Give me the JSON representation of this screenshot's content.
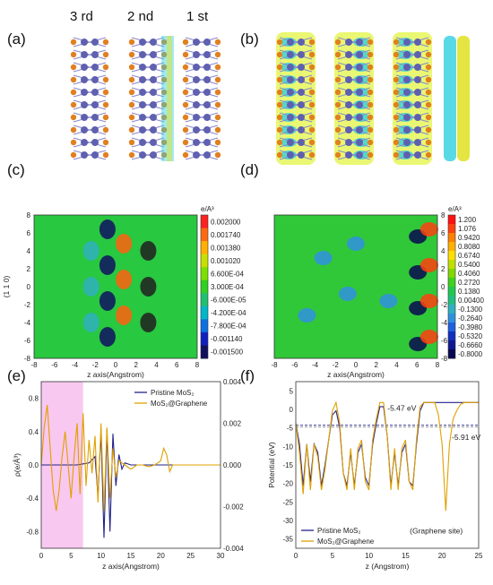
{
  "panels": {
    "a": "(a)",
    "b": "(b)",
    "c": "(c)",
    "d": "(d)",
    "e": "(e)",
    "f": "(f)"
  },
  "layer_labels": [
    "3 rd",
    "2 nd",
    "1 st"
  ],
  "colorbar_c": {
    "unit": "e/A³",
    "ticks": [
      "0.002000",
      "0.001740",
      "0.001380",
      "0.001020",
      "6.600E-04",
      "3.000E-04",
      "-6.000E-05",
      "-4.200E-04",
      "-7.800E-04",
      "-0.001140",
      "-0.001500"
    ],
    "colors": [
      "#ff2020",
      "#ff6a10",
      "#ffb000",
      "#c8e000",
      "#7ce000",
      "#30d020",
      "#20c070",
      "#00b8c8",
      "#1070e0",
      "#1020c0",
      "#101060"
    ]
  },
  "colorbar_d": {
    "unit": "e/A³",
    "ticks": [
      "1.200",
      "1.076",
      "0.9420",
      "0.8080",
      "0.6740",
      "0.5400",
      "0.4060",
      "0.2720",
      "0.1380",
      "0.00400",
      "-0.1300",
      "-0.2640",
      "-0.3980",
      "-0.5320",
      "-0.6660",
      "-0.8000"
    ],
    "colors": [
      "#ff1010",
      "#ff4010",
      "#ff8000",
      "#ffb000",
      "#ffe000",
      "#c0e000",
      "#80d800",
      "#40d020",
      "#20c850",
      "#20c080",
      "#30b0c0",
      "#3090e0",
      "#2060e0",
      "#1030c0",
      "#101890",
      "#080850"
    ]
  },
  "contour_c": {
    "ylabel": "(1 1 0)",
    "xlabel": "z axis(Angstrom)",
    "xticks": [
      "-8",
      "-6",
      "-4",
      "-2",
      "0",
      "2",
      "4",
      "6",
      "8"
    ],
    "yticks": [
      "8",
      "6",
      "4",
      "2",
      "0",
      "-2",
      "-4",
      "-6",
      "-8"
    ]
  },
  "contour_d": {
    "xlabel": "z axis(Angstrom)",
    "xticks": [
      "-8",
      "-6",
      "-4",
      "-2",
      "0",
      "2",
      "4",
      "6",
      "8"
    ],
    "yticks": [
      "8",
      "6",
      "4",
      "2",
      "0",
      "-2",
      "-4",
      "-6",
      "-8"
    ]
  },
  "chart_data": [
    {
      "type": "line",
      "panel": "(e)",
      "xlabel": "z axis(Angstrom)",
      "ylabel_left": "ρ(e/Å³)",
      "xlim": [
        0,
        30
      ],
      "ylim_left": [
        -1.0,
        1.0
      ],
      "ylim_right": [
        -0.004,
        0.004
      ],
      "xticks": [
        "0",
        "5",
        "10",
        "15",
        "20",
        "25",
        "30"
      ],
      "yticks_left": [
        "0.8",
        "0.4",
        "0.0",
        "-0.4",
        "-0.8"
      ],
      "yticks_right": [
        "0.004",
        "0.002",
        "0.000",
        "-0.002",
        "-0.004"
      ],
      "highlight_region": [
        0,
        7
      ],
      "highlight_color": "#f8c8f0",
      "series": [
        {
          "name": "Pristine MoS₂",
          "axis": "right",
          "color": "#22228a",
          "x": [
            0,
            2,
            4,
            6,
            7,
            8,
            9,
            9.5,
            10,
            10.5,
            11,
            11.5,
            12,
            12.5,
            13,
            13.5,
            14,
            15,
            16,
            18,
            20,
            22,
            25,
            30
          ],
          "y": [
            0,
            0,
            0,
            0,
            5e-05,
            0.0001,
            0.0004,
            -0.0015,
            0.0016,
            -0.0035,
            0.0017,
            -0.0032,
            0.0015,
            -0.001,
            0.0005,
            -0.0002,
            0.0001,
            0,
            0,
            0,
            0,
            0,
            0,
            0
          ]
        },
        {
          "name": "MoS₂@Graphene",
          "axis": "left",
          "color": "#e0a000",
          "x": [
            0,
            0.5,
            1,
            1.5,
            2,
            2.5,
            3,
            3.5,
            4,
            4.5,
            5,
            5.5,
            6,
            6.5,
            7,
            7.5,
            8,
            8.5,
            9,
            9.5,
            10,
            10.5,
            11,
            11.5,
            12,
            12.5,
            13,
            14,
            15,
            16,
            17,
            18,
            19,
            20,
            20.5,
            21,
            21.5,
            22,
            23,
            25,
            30
          ],
          "y": [
            0,
            0.45,
            0.72,
            0.2,
            -0.3,
            -0.55,
            -0.3,
            0.1,
            0.4,
            0.0,
            -0.4,
            0.1,
            0.5,
            -0.35,
            0.62,
            -0.25,
            0.3,
            -0.1,
            0.35,
            -0.45,
            0.5,
            -0.55,
            0.45,
            -0.4,
            0.2,
            -0.15,
            0.05,
            0.0,
            -0.05,
            0.0,
            0.0,
            -0.02,
            0.0,
            0.05,
            0.2,
            0.12,
            -0.08,
            0.0,
            0.0,
            0.0,
            0.0
          ]
        }
      ]
    },
    {
      "type": "line",
      "panel": "(f)",
      "xlabel": "z (Angstrom)",
      "ylabel": "Potential (eV)",
      "xlim": [
        0,
        25
      ],
      "ylim": [
        -35,
        5
      ],
      "xticks": [
        "0",
        "5",
        "10",
        "15",
        "20",
        "25"
      ],
      "yticks": [
        "5",
        "0",
        "-5",
        "-10",
        "-15",
        "-20",
        "-25",
        "-30",
        "-35"
      ],
      "annotations": [
        {
          "text": "-5.47 eV",
          "color": "#22228a",
          "x": 14.5,
          "y": -2
        },
        {
          "text": "-5.91 eV",
          "color": "#e0a000",
          "x": 23.3,
          "y": -9
        },
        {
          "text": "(Graphene site)",
          "color": "#111111",
          "x": 19.2,
          "y": -31.5
        }
      ],
      "hlines": [
        {
          "y": -5.47,
          "color": "#22228a"
        },
        {
          "y": -5.91,
          "color": "#777777"
        }
      ],
      "series": [
        {
          "name": "Pristine MoS₂",
          "color": "#22228a",
          "x": [
            0,
            0.5,
            1,
            1.5,
            2,
            2.5,
            3,
            3.5,
            4,
            5,
            5.5,
            6,
            6.5,
            7,
            7.5,
            8,
            8.5,
            9,
            9.5,
            10,
            10.5,
            11,
            11.5,
            12,
            12.5,
            13,
            13.5,
            14,
            14.5,
            15,
            15.5,
            16,
            16.5,
            17,
            17.5,
            18,
            19,
            20,
            22,
            25
          ],
          "y": [
            -5,
            -10,
            -20,
            -10,
            -19,
            -10,
            -12,
            -20,
            -15,
            -3,
            -2,
            -6,
            -17,
            -20,
            -12,
            -20,
            -12,
            -10,
            -18,
            -20,
            -10,
            -5,
            -1,
            -1,
            -8,
            -20,
            -12,
            -20,
            -12,
            -10,
            -19,
            -20,
            -10,
            -2,
            0,
            0,
            0,
            0,
            0,
            0
          ]
        },
        {
          "name": "MoS₂@Graphene",
          "color": "#e0a000",
          "x": [
            0,
            0.5,
            1,
            1.5,
            2,
            2.5,
            3,
            3.5,
            4,
            5,
            5.5,
            6,
            6.5,
            7,
            7.5,
            8,
            8.5,
            9,
            9.5,
            10,
            10.5,
            11,
            11.5,
            12,
            12.5,
            13,
            13.5,
            14,
            14.5,
            15,
            15.5,
            16,
            16.5,
            17,
            17.5,
            18,
            19,
            19.5,
            20,
            20.5,
            21,
            21.5,
            22,
            22.5,
            23,
            24,
            25
          ],
          "y": [
            -5,
            -12,
            -22,
            -10,
            -21,
            -10,
            -13,
            -21,
            -16,
            -2,
            0,
            -5,
            -17,
            -21,
            -11,
            -21,
            -11,
            -9,
            -19,
            -21,
            -9,
            -4,
            0,
            0,
            -8,
            -21,
            -11,
            -21,
            -11,
            -9,
            -19,
            -21,
            -9,
            -1,
            0,
            0,
            0,
            -3,
            -10,
            -26,
            -10,
            -4,
            -2,
            -0.5,
            0,
            0,
            0
          ]
        }
      ]
    }
  ],
  "legend_e": [
    "Pristine MoS₂",
    "MoS₂@Graphene"
  ],
  "legend_f": [
    "Pristine MoS₂",
    "MoS₂@Graphene"
  ]
}
